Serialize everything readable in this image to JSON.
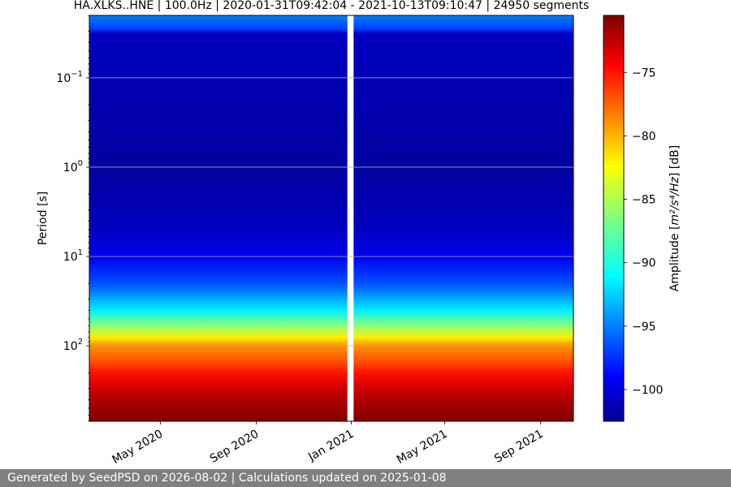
{
  "chart_data": {
    "type": "heatmap",
    "title": "HA.XLKS..HNE | 100.0Hz | 2020-01-31T09:42:04 - 2021-10-13T09:10:47 | 24950 segments",
    "ylabel": "Period [s]",
    "y_scale": "log",
    "y_inverted": true,
    "ylim": [
      0.02,
      700
    ],
    "y_ticks": [
      {
        "value": 0.1,
        "base": "10",
        "exp": "−1"
      },
      {
        "value": 1,
        "base": "10",
        "exp": "0"
      },
      {
        "value": 10,
        "base": "10",
        "exp": "1"
      },
      {
        "value": 100,
        "base": "10",
        "exp": "2"
      }
    ],
    "xlim": [
      "2020-01-31",
      "2021-10-13"
    ],
    "x_ticks": [
      {
        "date": "2020-05-01",
        "label": "May 2020"
      },
      {
        "date": "2020-09-01",
        "label": "Sep 2020"
      },
      {
        "date": "2021-01-01",
        "label": "Jan 2021"
      },
      {
        "date": "2021-05-01",
        "label": "May 2021"
      },
      {
        "date": "2021-09-01",
        "label": "Sep 2021"
      }
    ],
    "data_gaps": [
      [
        "2020-12-27",
        "2021-01-04"
      ]
    ],
    "grid": true,
    "colorbar": {
      "label_prefix": "Amplitude [",
      "label_unit": "m²/s⁴/Hz",
      "label_suffix": "] [dB]",
      "colormap": "jet",
      "vmin": -102.5,
      "vmax": -70.5,
      "ticks": [
        {
          "value": -75,
          "label": "−75"
        },
        {
          "value": -80,
          "label": "−80"
        },
        {
          "value": -85,
          "label": "−85"
        },
        {
          "value": -90,
          "label": "−90"
        },
        {
          "value": -95,
          "label": "−95"
        },
        {
          "value": -100,
          "label": "−100"
        }
      ]
    },
    "period_profile": [
      {
        "period": 0.02,
        "db": -94.5
      },
      {
        "period": 0.028,
        "db": -96.5
      },
      {
        "period": 0.032,
        "db": -100.5
      },
      {
        "period": 1,
        "db": -101.5
      },
      {
        "period": 5,
        "db": -100.5
      },
      {
        "period": 10,
        "db": -99
      },
      {
        "period": 20,
        "db": -96
      },
      {
        "period": 40,
        "db": -91
      },
      {
        "period": 60,
        "db": -86
      },
      {
        "period": 80,
        "db": -82
      },
      {
        "period": 100,
        "db": -79
      },
      {
        "period": 150,
        "db": -77
      },
      {
        "period": 200,
        "db": -75
      },
      {
        "period": 300,
        "db": -73
      },
      {
        "period": 400,
        "db": -72
      },
      {
        "period": 700,
        "db": -70.5
      }
    ]
  },
  "footer": {
    "text": "Generated by SeedPSD on 2026-08-02 | Calculations updated on 2025-01-08"
  }
}
